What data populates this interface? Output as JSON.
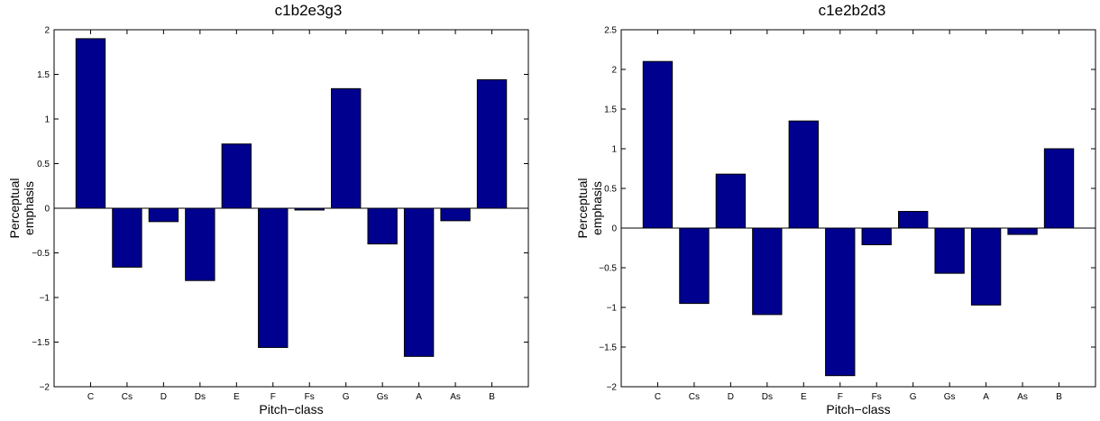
{
  "chart_data": [
    {
      "type": "bar",
      "title": "c1b2e3g3",
      "xlabel": "Pitch−class",
      "ylabel_lines": [
        "Perceptual",
        "emphasis"
      ],
      "categories": [
        "C",
        "Cs",
        "D",
        "Ds",
        "E",
        "F",
        "Fs",
        "G",
        "Gs",
        "A",
        "As",
        "B"
      ],
      "values": [
        1.9,
        -0.66,
        -0.15,
        -0.81,
        0.72,
        -1.56,
        -0.02,
        1.34,
        -0.4,
        -1.66,
        -0.14,
        1.44
      ],
      "ylim": [
        -2,
        2
      ],
      "yticks": [
        -2,
        -1.5,
        -1,
        -0.5,
        0,
        0.5,
        1,
        1.5,
        2
      ],
      "ytick_labels": [
        "−2",
        "−1.5",
        "−1",
        "−0.5",
        "0",
        "0.5",
        "1",
        "1.5",
        "2"
      ],
      "bar_color": "#00008f",
      "grid": false
    },
    {
      "type": "bar",
      "title": "c1e2b2d3",
      "xlabel": "Pitch−class",
      "ylabel_lines": [
        "Perceptual",
        "emphasis"
      ],
      "categories": [
        "C",
        "Cs",
        "D",
        "Ds",
        "E",
        "F",
        "Fs",
        "G",
        "Gs",
        "A",
        "As",
        "B"
      ],
      "values": [
        2.1,
        -0.95,
        0.68,
        -1.09,
        1.35,
        -1.86,
        -0.21,
        0.21,
        -0.57,
        -0.97,
        -0.08,
        1.0
      ],
      "ylim": [
        -2,
        2.5
      ],
      "yticks": [
        -2,
        -1.5,
        -1,
        -0.5,
        0,
        0.5,
        1,
        1.5,
        2,
        2.5
      ],
      "ytick_labels": [
        "−2",
        "−1.5",
        "−1",
        "−0.5",
        "0",
        "0.5",
        "1",
        "1.5",
        "2",
        "2.5"
      ],
      "bar_color": "#00008f",
      "grid": false
    }
  ]
}
